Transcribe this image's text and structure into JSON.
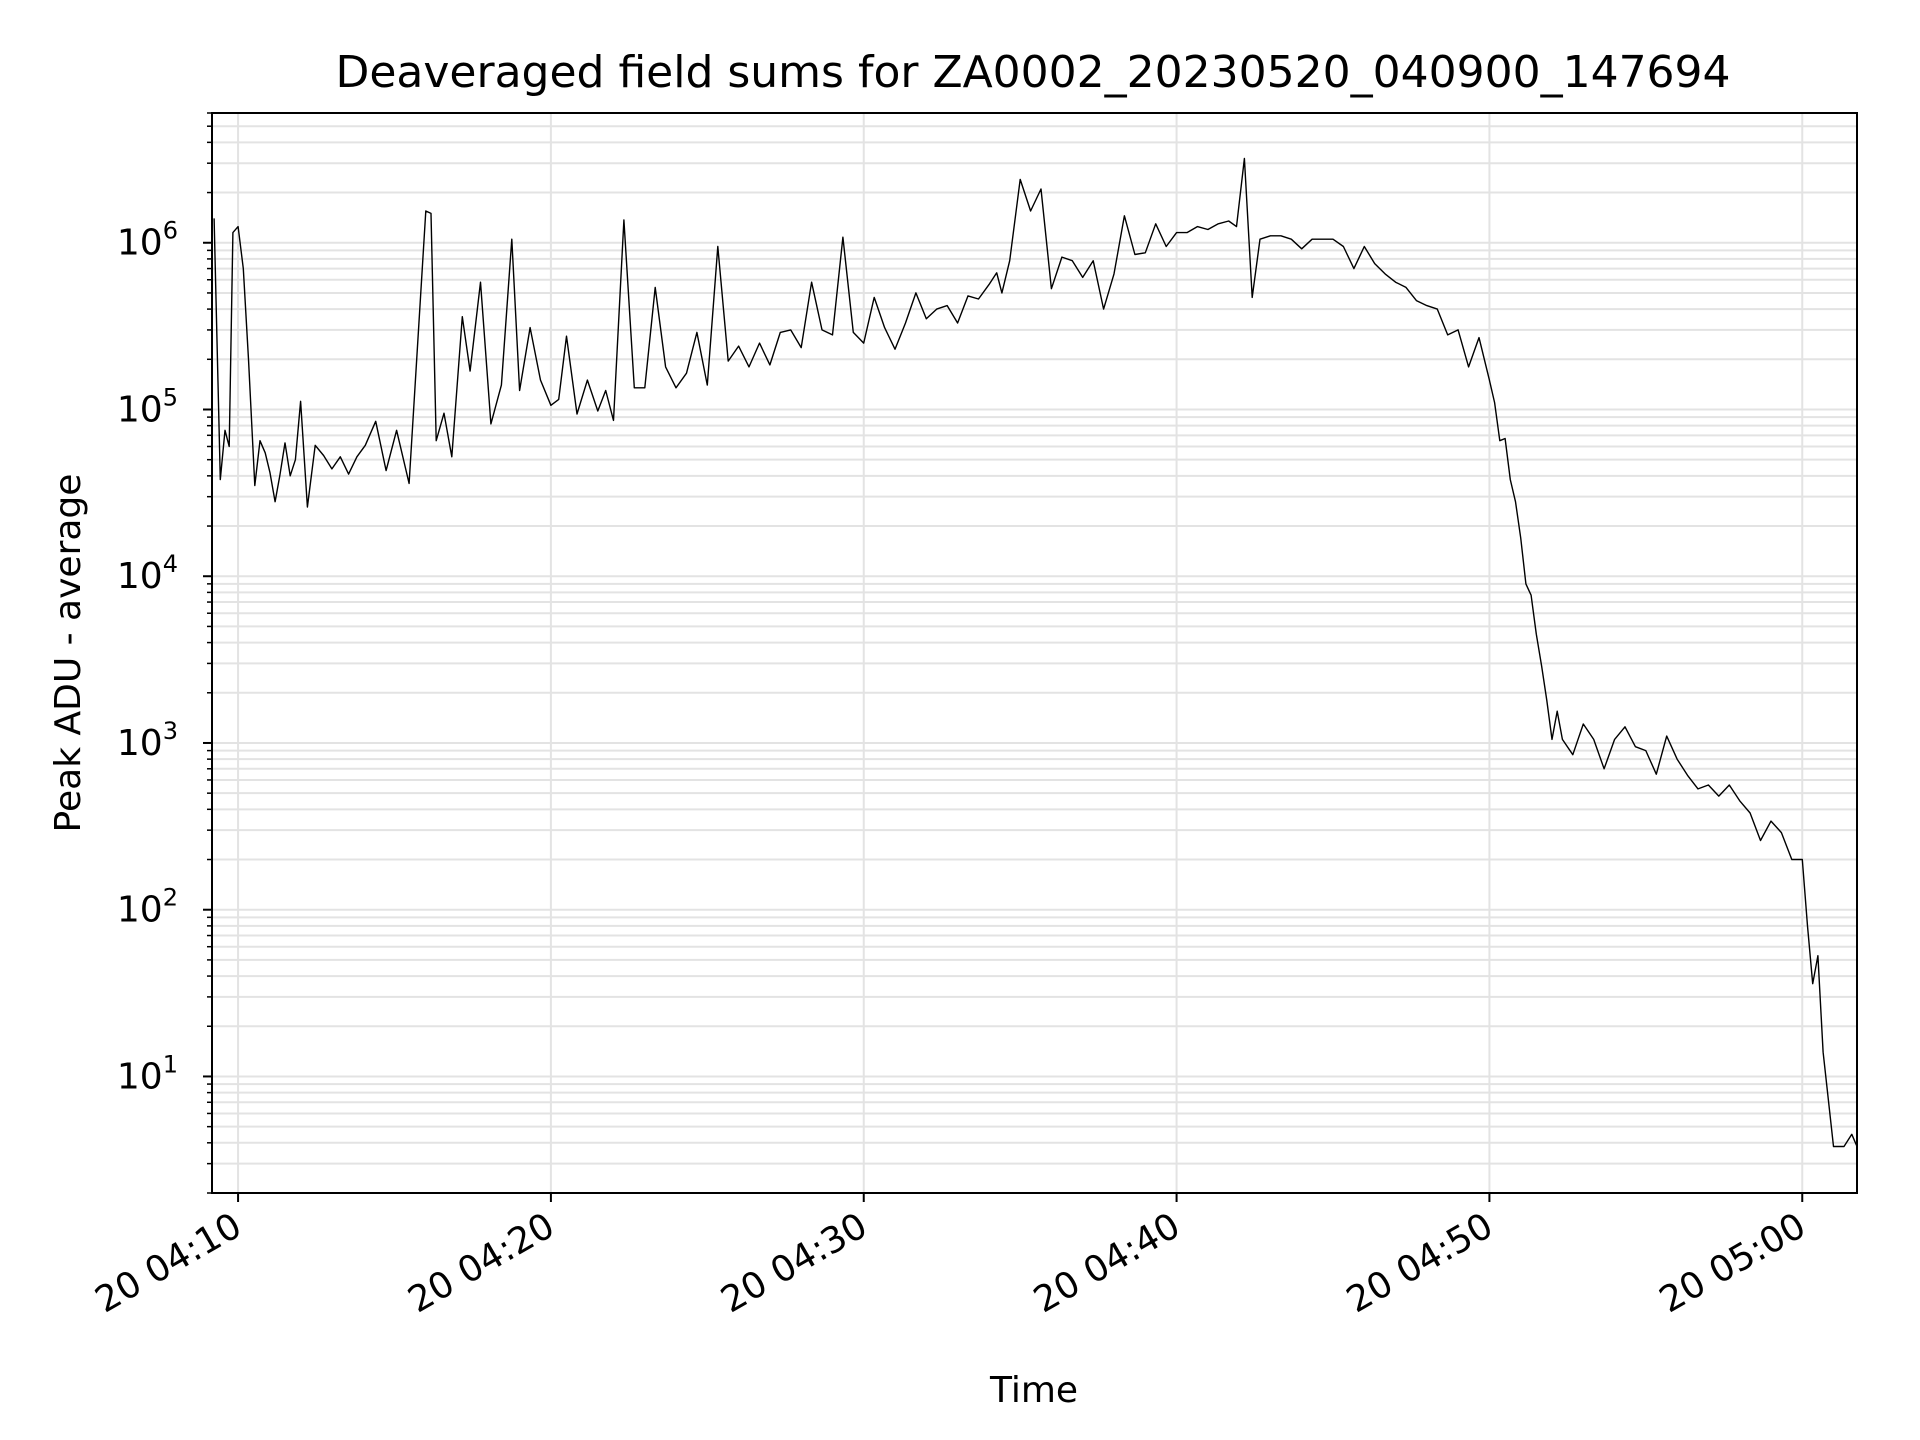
{
  "chart_data": {
    "type": "line",
    "title": "Deaveraged field sums for ZA0002_20230520_040900_147694",
    "xlabel": "Time",
    "ylabel": "Peak ADU - average",
    "yscale": "log",
    "ylim": [
      2,
      6000000
    ],
    "xlim": [
      "2023-05-20 04:09:10",
      "2023-05-20 05:01:45"
    ],
    "grid": true,
    "line_color": "#000000",
    "x_ticks": [
      {
        "value": "2023-05-20 04:10:00",
        "label": "20 04:10"
      },
      {
        "value": "2023-05-20 04:20:00",
        "label": "20 04:20"
      },
      {
        "value": "2023-05-20 04:30:00",
        "label": "20 04:30"
      },
      {
        "value": "2023-05-20 04:40:00",
        "label": "20 04:40"
      },
      {
        "value": "2023-05-20 04:50:00",
        "label": "20 04:50"
      },
      {
        "value": "2023-05-20 05:00:00",
        "label": "20 05:00"
      }
    ],
    "y_ticks": [
      {
        "value": 10,
        "base": "10",
        "exp": "1"
      },
      {
        "value": 100,
        "base": "10",
        "exp": "2"
      },
      {
        "value": 1000,
        "base": "10",
        "exp": "3"
      },
      {
        "value": 10000,
        "base": "10",
        "exp": "4"
      },
      {
        "value": 100000,
        "base": "10",
        "exp": "5"
      },
      {
        "value": 1000000,
        "base": "10",
        "exp": "6"
      }
    ],
    "series": [
      {
        "x": [
          "2023-05-20 04:09:14",
          "2023-05-20 04:09:26",
          "2023-05-20 04:09:35",
          "2023-05-20 04:09:43",
          "2023-05-20 04:09:50",
          "2023-05-20 04:10:00",
          "2023-05-20 04:10:10",
          "2023-05-20 04:10:20",
          "2023-05-20 04:10:32",
          "2023-05-20 04:10:42",
          "2023-05-20 04:10:52",
          "2023-05-20 04:11:01",
          "2023-05-20 04:11:11",
          "2023-05-20 04:11:20",
          "2023-05-20 04:11:30",
          "2023-05-20 04:11:40",
          "2023-05-20 04:11:50",
          "2023-05-20 04:12:00",
          "2023-05-20 04:12:13",
          "2023-05-20 04:12:28",
          "2023-05-20 04:12:44",
          "2023-05-20 04:13:00",
          "2023-05-20 04:13:16",
          "2023-05-20 04:13:32",
          "2023-05-20 04:13:48",
          "2023-05-20 04:14:04",
          "2023-05-20 04:14:24",
          "2023-05-20 04:14:44",
          "2023-05-20 04:15:04",
          "2023-05-20 04:15:28",
          "2023-05-20 04:15:46",
          "2023-05-20 04:16:00",
          "2023-05-20 04:16:10",
          "2023-05-20 04:16:20",
          "2023-05-20 04:16:35",
          "2023-05-20 04:16:50",
          "2023-05-20 04:17:10",
          "2023-05-20 04:17:25",
          "2023-05-20 04:17:45",
          "2023-05-20 04:18:05",
          "2023-05-20 04:18:25",
          "2023-05-20 04:18:45",
          "2023-05-20 04:19:00",
          "2023-05-20 04:19:20",
          "2023-05-20 04:19:40",
          "2023-05-20 04:20:00",
          "2023-05-20 04:20:15",
          "2023-05-20 04:20:30",
          "2023-05-20 04:20:50",
          "2023-05-20 04:21:10",
          "2023-05-20 04:21:30",
          "2023-05-20 04:21:45",
          "2023-05-20 04:22:00",
          "2023-05-20 04:22:20",
          "2023-05-20 04:22:40",
          "2023-05-20 04:23:00",
          "2023-05-20 04:23:20",
          "2023-05-20 04:23:40",
          "2023-05-20 04:24:00",
          "2023-05-20 04:24:20",
          "2023-05-20 04:24:40",
          "2023-05-20 04:25:00",
          "2023-05-20 04:25:20",
          "2023-05-20 04:25:40",
          "2023-05-20 04:26:00",
          "2023-05-20 04:26:20",
          "2023-05-20 04:26:40",
          "2023-05-20 04:27:00",
          "2023-05-20 04:27:20",
          "2023-05-20 04:27:40",
          "2023-05-20 04:28:00",
          "2023-05-20 04:28:20",
          "2023-05-20 04:28:40",
          "2023-05-20 04:29:00",
          "2023-05-20 04:29:20",
          "2023-05-20 04:29:40",
          "2023-05-20 04:30:00",
          "2023-05-20 04:30:20",
          "2023-05-20 04:30:40",
          "2023-05-20 04:31:00",
          "2023-05-20 04:31:20",
          "2023-05-20 04:31:40",
          "2023-05-20 04:32:00",
          "2023-05-20 04:32:20",
          "2023-05-20 04:32:40",
          "2023-05-20 04:33:00",
          "2023-05-20 04:33:20",
          "2023-05-20 04:33:40",
          "2023-05-20 04:34:00",
          "2023-05-20 04:34:15",
          "2023-05-20 04:34:25",
          "2023-05-20 04:34:40",
          "2023-05-20 04:35:00",
          "2023-05-20 04:35:20",
          "2023-05-20 04:35:40",
          "2023-05-20 04:36:00",
          "2023-05-20 04:36:20",
          "2023-05-20 04:36:40",
          "2023-05-20 04:37:00",
          "2023-05-20 04:37:20",
          "2023-05-20 04:37:40",
          "2023-05-20 04:38:00",
          "2023-05-20 04:38:20",
          "2023-05-20 04:38:40",
          "2023-05-20 04:39:00",
          "2023-05-20 04:39:20",
          "2023-05-20 04:39:40",
          "2023-05-20 04:40:00",
          "2023-05-20 04:40:20",
          "2023-05-20 04:40:40",
          "2023-05-20 04:41:00",
          "2023-05-20 04:41:20",
          "2023-05-20 04:41:40",
          "2023-05-20 04:41:55",
          "2023-05-20 04:42:10",
          "2023-05-20 04:42:25",
          "2023-05-20 04:42:40",
          "2023-05-20 04:43:00",
          "2023-05-20 04:43:20",
          "2023-05-20 04:43:40",
          "2023-05-20 04:44:00",
          "2023-05-20 04:44:20",
          "2023-05-20 04:44:40",
          "2023-05-20 04:45:00",
          "2023-05-20 04:45:20",
          "2023-05-20 04:45:40",
          "2023-05-20 04:46:00",
          "2023-05-20 04:46:20",
          "2023-05-20 04:46:40",
          "2023-05-20 04:47:00",
          "2023-05-20 04:47:20",
          "2023-05-20 04:47:40",
          "2023-05-20 04:48:00",
          "2023-05-20 04:48:20",
          "2023-05-20 04:48:40",
          "2023-05-20 04:49:00",
          "2023-05-20 04:49:20",
          "2023-05-20 04:49:40",
          "2023-05-20 04:50:00",
          "2023-05-20 04:50:10",
          "2023-05-20 04:50:20",
          "2023-05-20 04:50:30",
          "2023-05-20 04:50:40",
          "2023-05-20 04:50:50",
          "2023-05-20 04:51:00",
          "2023-05-20 04:51:10",
          "2023-05-20 04:51:20",
          "2023-05-20 04:51:30",
          "2023-05-20 04:51:40",
          "2023-05-20 04:51:50",
          "2023-05-20 04:52:00",
          "2023-05-20 04:52:10",
          "2023-05-20 04:52:20",
          "2023-05-20 04:52:40",
          "2023-05-20 04:53:00",
          "2023-05-20 04:53:20",
          "2023-05-20 04:53:40",
          "2023-05-20 04:54:00",
          "2023-05-20 04:54:20",
          "2023-05-20 04:54:40",
          "2023-05-20 04:55:00",
          "2023-05-20 04:55:20",
          "2023-05-20 04:55:40",
          "2023-05-20 04:56:00",
          "2023-05-20 04:56:20",
          "2023-05-20 04:56:40",
          "2023-05-20 04:57:00",
          "2023-05-20 04:57:20",
          "2023-05-20 04:57:40",
          "2023-05-20 04:58:00",
          "2023-05-20 04:58:20",
          "2023-05-20 04:58:40",
          "2023-05-20 04:59:00",
          "2023-05-20 04:59:20",
          "2023-05-20 04:59:40",
          "2023-05-20 05:00:00",
          "2023-05-20 05:00:10",
          "2023-05-20 05:00:20",
          "2023-05-20 05:00:30",
          "2023-05-20 05:00:40",
          "2023-05-20 05:01:00",
          "2023-05-20 05:01:20",
          "2023-05-20 05:01:35",
          "2023-05-20 05:01:45"
        ],
        "y": [
          1400000,
          38000,
          75000,
          60000,
          1150000,
          1250000,
          700000,
          200000,
          35000,
          65000,
          55000,
          42000,
          28000,
          40000,
          63000,
          40000,
          50000,
          112000,
          26000,
          61000,
          53000,
          44000,
          52000,
          41000,
          52000,
          61000,
          85000,
          43000,
          75000,
          36000,
          300000,
          1550000,
          1500000,
          65000,
          95000,
          52000,
          360000,
          170000,
          580000,
          82000,
          140000,
          1050000,
          130000,
          310000,
          150000,
          106000,
          115000,
          275000,
          94000,
          150000,
          98000,
          130000,
          86000,
          1370000,
          135000,
          135000,
          540000,
          180000,
          135000,
          165000,
          290000,
          140000,
          950000,
          195000,
          240000,
          180000,
          250000,
          185000,
          290000,
          300000,
          235000,
          580000,
          300000,
          280000,
          1080000,
          290000,
          250000,
          470000,
          310000,
          230000,
          330000,
          500000,
          350000,
          400000,
          420000,
          330000,
          480000,
          460000,
          560000,
          660000,
          500000,
          780000,
          2400000,
          1550000,
          2100000,
          530000,
          820000,
          780000,
          620000,
          780000,
          400000,
          650000,
          1450000,
          850000,
          870000,
          1300000,
          950000,
          1150000,
          1150000,
          1250000,
          1200000,
          1300000,
          1350000,
          1250000,
          3200000,
          470000,
          1050000,
          1100000,
          1100000,
          1050000,
          920000,
          1050000,
          1050000,
          1050000,
          950000,
          700000,
          950000,
          750000,
          650000,
          580000,
          540000,
          450000,
          420000,
          400000,
          280000,
          300000,
          180000,
          270000,
          150000,
          110000,
          65000,
          67000,
          38000,
          28000,
          17000,
          9000,
          7700,
          4500,
          2900,
          1800,
          1050,
          1550,
          1050,
          850,
          1300,
          1050,
          700,
          1050,
          1250,
          950,
          900,
          650,
          1100,
          800,
          640,
          530,
          560,
          480,
          560,
          450,
          380,
          260,
          340,
          290,
          200,
          200,
          80,
          36,
          53,
          14,
          3.8,
          3.8,
          4.5,
          3.8
        ]
      }
    ]
  }
}
